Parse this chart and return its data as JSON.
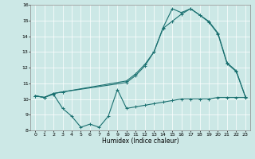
{
  "xlabel": "Humidex (Indice chaleur)",
  "xlim": [
    -0.5,
    23.5
  ],
  "ylim": [
    8,
    16
  ],
  "xticks": [
    0,
    1,
    2,
    3,
    4,
    5,
    6,
    7,
    8,
    9,
    10,
    11,
    12,
    13,
    14,
    15,
    16,
    17,
    18,
    19,
    20,
    21,
    22,
    23
  ],
  "yticks": [
    8,
    9,
    10,
    11,
    12,
    13,
    14,
    15,
    16
  ],
  "bg_color": "#cce8e6",
  "line_color": "#1a7070",
  "line1_x": [
    0,
    1,
    2,
    3,
    4,
    5,
    6,
    7,
    8,
    9,
    10,
    11,
    12,
    13,
    14,
    15,
    16,
    17,
    18,
    19,
    20,
    21,
    22,
    23
  ],
  "line1_y": [
    10.2,
    10.1,
    10.3,
    9.4,
    8.9,
    8.2,
    8.4,
    8.2,
    8.9,
    10.6,
    9.4,
    9.5,
    9.6,
    9.7,
    9.8,
    9.9,
    10.0,
    10.0,
    10.0,
    10.0,
    10.1,
    10.1,
    10.1,
    10.1
  ],
  "line2_x": [
    0,
    1,
    2,
    3,
    10,
    11,
    12,
    13,
    14,
    15,
    16,
    17,
    18,
    19,
    20,
    21,
    22,
    23
  ],
  "line2_y": [
    10.2,
    10.1,
    10.35,
    10.45,
    11.05,
    11.5,
    12.1,
    13.0,
    14.55,
    15.75,
    15.5,
    15.75,
    15.35,
    14.95,
    14.2,
    12.3,
    11.8,
    10.15
  ],
  "line3_x": [
    0,
    1,
    2,
    3,
    10,
    11,
    12,
    13,
    14,
    15,
    16,
    17,
    18,
    19,
    20,
    21,
    22,
    23
  ],
  "line3_y": [
    10.2,
    10.1,
    10.35,
    10.45,
    11.15,
    11.6,
    12.2,
    13.0,
    14.5,
    14.95,
    15.4,
    15.75,
    15.35,
    14.9,
    14.15,
    12.25,
    11.75,
    10.15
  ]
}
